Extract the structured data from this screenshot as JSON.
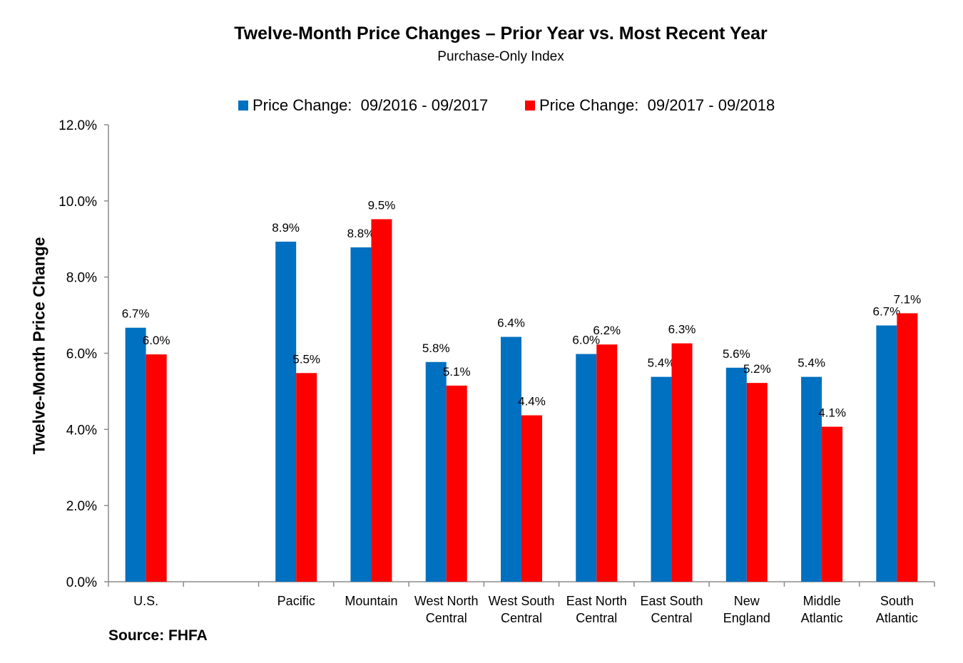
{
  "chart_data": {
    "type": "bar",
    "title": "Twelve-Month Price Changes – Prior Year vs. Most Recent Year",
    "subtitle": "Purchase-Only Index",
    "xlabel": "",
    "ylabel": "Twelve-Month Price Change",
    "ylim": [
      0,
      12
    ],
    "yticks": [
      "0.0%",
      "2.0%",
      "4.0%",
      "6.0%",
      "8.0%",
      "10.0%",
      "12.0%"
    ],
    "grid": false,
    "legend_position": "top",
    "categories": [
      [
        "U.S."
      ],
      [
        ""
      ],
      [
        "Pacific"
      ],
      [
        "Mountain"
      ],
      [
        "West North",
        "Central"
      ],
      [
        "West South",
        "Central"
      ],
      [
        "East North",
        "Central"
      ],
      [
        "East South",
        "Central"
      ],
      [
        "New",
        "England"
      ],
      [
        "Middle",
        "Atlantic"
      ],
      [
        "South",
        "Atlantic"
      ]
    ],
    "series": [
      {
        "name": "Price Change:  09/2016 - 09/2017",
        "color": "#0070C0",
        "values": [
          6.67,
          null,
          8.93,
          8.78,
          5.77,
          6.43,
          5.98,
          5.38,
          5.62,
          5.38,
          6.73
        ],
        "labels": [
          "6.7%",
          "",
          "8.9%",
          "8.8%",
          "5.8%",
          "6.4%",
          "6.0%",
          "5.4%",
          "5.6%",
          "5.4%",
          "6.7%"
        ]
      },
      {
        "name": "Price Change:  09/2017 - 09/2018",
        "color": "#FF0000",
        "values": [
          5.97,
          null,
          5.48,
          9.52,
          5.15,
          4.37,
          6.23,
          6.26,
          5.22,
          4.07,
          7.05
        ],
        "labels": [
          "6.0%",
          "",
          "5.5%",
          "9.5%",
          "5.1%",
          "4.4%",
          "6.2%",
          "6.3%",
          "5.2%",
          "4.1%",
          "7.1%"
        ]
      }
    ]
  },
  "source": "Source: FHFA"
}
